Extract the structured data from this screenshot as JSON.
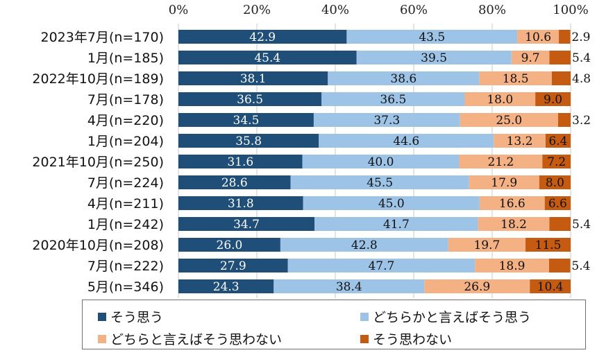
{
  "chart_data": {
    "type": "bar",
    "orientation": "horizontal",
    "stacked": true,
    "xlim": [
      0,
      100
    ],
    "x_ticks": [
      "0%",
      "20%",
      "40%",
      "60%",
      "80%",
      "100%"
    ],
    "categories": [
      "2023年7月(n=170)",
      "1月(n=185)",
      "2022年10月(n=189)",
      "7月(n=178)",
      "4月(n=220)",
      "1月(n=204)",
      "2021年10月(n=250)",
      "7月(n=224)",
      "4月(n=211)",
      "1月(n=242)",
      "2020年10月(n=208)",
      "7月(n=222)",
      "5月(n=346)"
    ],
    "series": [
      {
        "name": "そう思う",
        "color": "#1f4e79",
        "values": [
          42.9,
          45.4,
          38.1,
          36.5,
          34.5,
          35.8,
          31.6,
          28.6,
          31.8,
          34.7,
          26.0,
          27.9,
          24.3
        ]
      },
      {
        "name": "どちらかと言えばそう思う",
        "color": "#9dc3e6",
        "values": [
          43.5,
          39.5,
          38.6,
          36.5,
          37.3,
          44.6,
          40.0,
          45.5,
          45.0,
          41.7,
          42.8,
          47.7,
          38.4
        ]
      },
      {
        "name": "どちらと言えばそう思わない",
        "color": "#f4b183",
        "values": [
          10.6,
          9.7,
          18.5,
          18.0,
          25.0,
          13.2,
          21.2,
          17.9,
          16.6,
          18.2,
          19.7,
          18.9,
          26.9
        ]
      },
      {
        "name": "そう思わない",
        "color": "#c55a11",
        "values": [
          2.9,
          5.4,
          4.8,
          9.0,
          3.2,
          6.4,
          7.2,
          8.0,
          6.6,
          5.4,
          11.5,
          5.4,
          10.4
        ]
      }
    ],
    "grid": true,
    "legend_position": "bottom"
  }
}
